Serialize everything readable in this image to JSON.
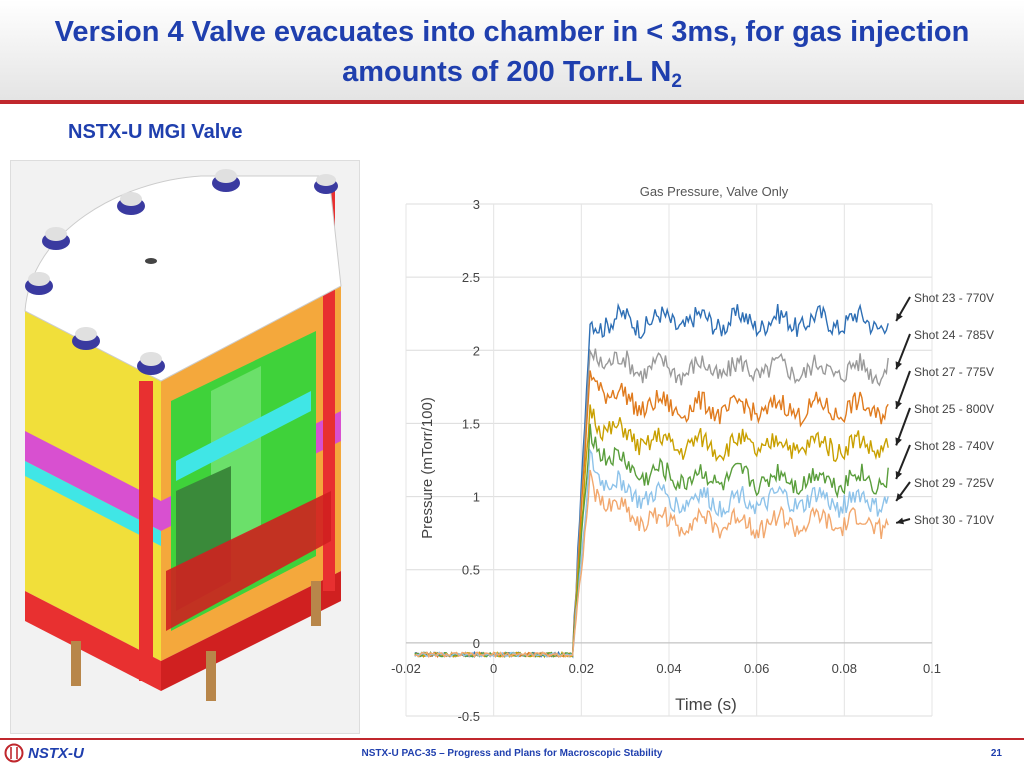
{
  "slide": {
    "title_main": "Version 4 Valve evacuates into chamber in < 3ms, for gas injection amounts of 200 Torr.L N",
    "title_sub": "2",
    "subtitle": "NSTX-U MGI Valve",
    "footer_text": "NSTX-U PAC-35 – Progress and Plans for Macroscopic Stability",
    "page_number": "21",
    "logo_text": "NSTX-U"
  },
  "colors": {
    "title": "#1f3fae",
    "rule": "#c0272d",
    "valve_yellow": "#f1df3a",
    "valve_orange": "#f4a83c",
    "valve_magenta": "#d850d0",
    "valve_green": "#3fd23a",
    "valve_cyan": "#40e6e6",
    "valve_red": "#e83030"
  },
  "chart_data": {
    "type": "line",
    "title": "Gas Pressure, Valve Only",
    "xlabel": "Time (s)",
    "ylabel": "Pressure (mTorr/100)",
    "xlim": [
      -0.02,
      0.1
    ],
    "ylim": [
      -0.5,
      3
    ],
    "xticks": [
      -0.02,
      0,
      0.02,
      0.04,
      0.06,
      0.08,
      0.1
    ],
    "yticks": [
      -0.5,
      0,
      0.5,
      1,
      1.5,
      2,
      2.5,
      3
    ],
    "x_tick_labels": [
      "-0.02",
      "0",
      "0.02",
      "0.04",
      "0.06",
      "0.08",
      "0.1"
    ],
    "y_tick_labels": [
      "-0.5",
      "0",
      "0.5",
      "1",
      "1.5",
      "2",
      "2.5",
      "3"
    ],
    "grid": true,
    "legend": "right",
    "baseline": -0.08,
    "rise_start": 0.018,
    "rise_end": 0.022,
    "x_end": 0.09,
    "series": [
      {
        "name": "Shot 23 - 770V",
        "color": "#2e6fb5",
        "plateau": 2.2,
        "peak": 2.2
      },
      {
        "name": "Shot 24 - 785V",
        "color": "#9a9a9a",
        "plateau": 1.87,
        "peak": 2.0
      },
      {
        "name": "Shot 27 - 775V",
        "color": "#e07b1e",
        "plateau": 1.6,
        "peak": 1.85
      },
      {
        "name": "Shot 25 - 800V",
        "color": "#c9a000",
        "plateau": 1.35,
        "peak": 1.6
      },
      {
        "name": "Shot 28 - 740V",
        "color": "#5a9e3c",
        "plateau": 1.12,
        "peak": 1.45
      },
      {
        "name": "Shot 29 - 725V",
        "color": "#8ec3ea",
        "plateau": 0.97,
        "peak": 1.25
      },
      {
        "name": "Shot 30 - 710V",
        "color": "#f2a86e",
        "plateau": 0.82,
        "peak": 1.1
      }
    ]
  }
}
